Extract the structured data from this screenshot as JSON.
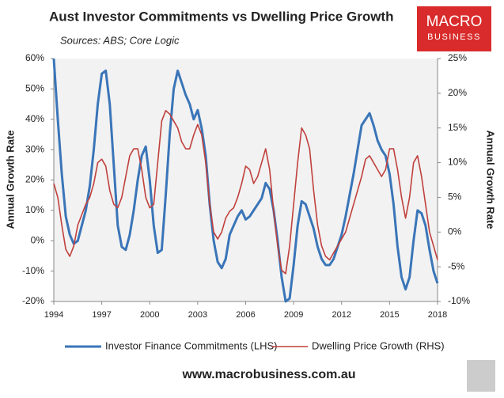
{
  "chart_data": {
    "type": "line",
    "title": "Aust Investor Commitments vs Dwelling Price Growth",
    "subtitle": "Sources: ABS; Core Logic",
    "ylabel": "Annual Growth Rate",
    "y2label": "Annual Growth Rate",
    "x": [
      1994,
      1994.25,
      1994.5,
      1994.75,
      1995,
      1995.25,
      1995.5,
      1995.75,
      1996,
      1996.25,
      1996.5,
      1996.75,
      1997,
      1997.25,
      1997.5,
      1997.75,
      1998,
      1998.25,
      1998.5,
      1998.75,
      1999,
      1999.25,
      1999.5,
      1999.75,
      2000,
      2000.25,
      2000.5,
      2000.75,
      2001,
      2001.25,
      2001.5,
      2001.75,
      2002,
      2002.25,
      2002.5,
      2002.75,
      2003,
      2003.25,
      2003.5,
      2003.75,
      2004,
      2004.25,
      2004.5,
      2004.75,
      2005,
      2005.25,
      2005.5,
      2005.75,
      2006,
      2006.25,
      2006.5,
      2006.75,
      2007,
      2007.25,
      2007.5,
      2007.75,
      2008,
      2008.25,
      2008.5,
      2008.75,
      2009,
      2009.25,
      2009.5,
      2009.75,
      2010,
      2010.25,
      2010.5,
      2010.75,
      2011,
      2011.25,
      2011.5,
      2011.75,
      2012,
      2012.25,
      2012.5,
      2012.75,
      2013,
      2013.25,
      2013.5,
      2013.75,
      2014,
      2014.25,
      2014.5,
      2014.75,
      2015,
      2015.25,
      2015.5,
      2015.75,
      2016,
      2016.25,
      2016.5,
      2016.75,
      2017,
      2017.25,
      2017.5,
      2017.75,
      2018
    ],
    "series": [
      {
        "name": "Investor Finance Commitments (LHS)",
        "color": "#3a75b8",
        "axis": "y",
        "values": [
          60,
          40,
          22,
          8,
          2,
          -1,
          0,
          5,
          10,
          18,
          30,
          45,
          55,
          56,
          45,
          25,
          5,
          -2,
          -3,
          2,
          10,
          20,
          28,
          31,
          20,
          5,
          -4,
          -3,
          15,
          35,
          50,
          56,
          52,
          48,
          45,
          40,
          43,
          37,
          28,
          12,
          0,
          -7,
          -9,
          -6,
          2,
          5,
          8,
          10,
          7,
          8,
          10,
          12,
          14,
          19,
          17,
          10,
          0,
          -12,
          -20,
          -19,
          -8,
          5,
          13,
          12,
          8,
          4,
          -2,
          -6,
          -8,
          -8,
          -6,
          -2,
          2,
          8,
          15,
          22,
          30,
          38,
          40,
          42,
          38,
          33,
          30,
          28,
          22,
          12,
          -2,
          -12,
          -16,
          -12,
          0,
          10,
          9,
          5,
          -3,
          -10,
          -14
        ]
      },
      {
        "name": "Dwelling Price Growth (RHS)",
        "color": "#c0403c",
        "axis": "y2",
        "values": [
          7,
          5,
          1,
          -2.5,
          -3.5,
          -2,
          1,
          2.5,
          4,
          5,
          7,
          10,
          10.5,
          9.5,
          6,
          4,
          3.5,
          5,
          8,
          11,
          12,
          12,
          9,
          5,
          3.5,
          4,
          10,
          16,
          17.5,
          17,
          16,
          15,
          13,
          12,
          12,
          14,
          15.5,
          14,
          10,
          4,
          0,
          -1,
          0,
          2,
          3,
          3.5,
          5,
          7,
          9.5,
          9,
          7,
          8,
          10,
          12,
          9,
          3,
          -2,
          -5.5,
          -6,
          -2,
          4,
          10,
          15,
          14,
          12,
          6,
          1,
          -2,
          -3.5,
          -4,
          -3,
          -2,
          -1,
          0,
          2,
          4,
          6,
          8,
          10.5,
          11,
          10,
          9,
          8,
          9,
          12,
          12,
          9,
          5,
          2,
          5,
          10,
          11,
          8,
          4,
          0,
          -2,
          -4
        ]
      }
    ],
    "xlim": [
      1994,
      2018
    ],
    "xticks": [
      1994,
      1997,
      2000,
      2003,
      2006,
      2009,
      2012,
      2015,
      2018
    ],
    "ylim": [
      -20,
      60
    ],
    "yticks": [
      {
        "value": -20,
        "label": "-20%"
      },
      {
        "value": -10,
        "label": "-10%"
      },
      {
        "value": 0,
        "label": "0%"
      },
      {
        "value": 10,
        "label": "10%"
      },
      {
        "value": 20,
        "label": "20%"
      },
      {
        "value": 30,
        "label": "30%"
      },
      {
        "value": 40,
        "label": "40%"
      },
      {
        "value": 50,
        "label": "50%"
      },
      {
        "value": 60,
        "label": "60%"
      }
    ],
    "y2lim": [
      -10,
      25
    ],
    "y2ticks": [
      {
        "value": -10,
        "label": "-10%"
      },
      {
        "value": -5,
        "label": "-5%"
      },
      {
        "value": 0,
        "label": "0%"
      },
      {
        "value": 5,
        "label": "5%"
      },
      {
        "value": 10,
        "label": "10%"
      },
      {
        "value": 15,
        "label": "15%"
      },
      {
        "value": 20,
        "label": "20%"
      },
      {
        "value": 25,
        "label": "25%"
      }
    ],
    "grid": false,
    "legend": "bottom"
  },
  "branding": {
    "logo_top": "MACRO",
    "logo_bottom": "BUSINESS",
    "website": "www.macrobusiness.com.au"
  }
}
